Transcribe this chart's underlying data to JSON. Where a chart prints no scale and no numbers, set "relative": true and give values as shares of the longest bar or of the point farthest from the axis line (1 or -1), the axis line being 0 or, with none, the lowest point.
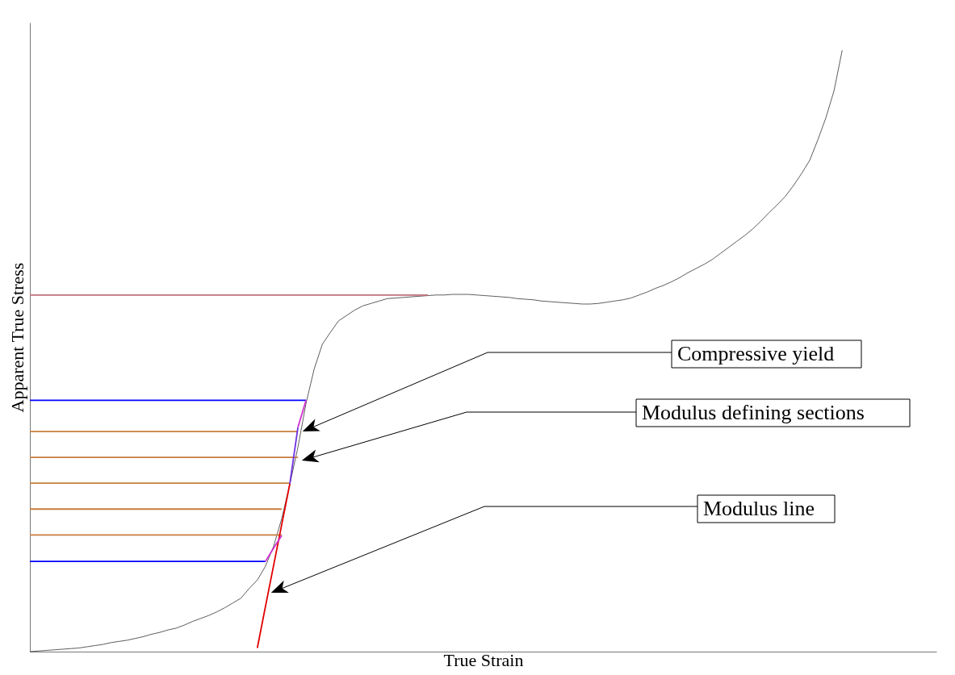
{
  "chart_data": {
    "type": "line",
    "relative": true,
    "xlabel": "True Strain",
    "ylabel": "Apparent True Stress",
    "categories": [
      null,
      null,
      null,
      null,
      null,
      null,
      null,
      null,
      null,
      null,
      null,
      null,
      null,
      null,
      null,
      null,
      null,
      null,
      null,
      null,
      null,
      null,
      null,
      null,
      null,
      null,
      null,
      null,
      null,
      null,
      null,
      null,
      null,
      null,
      null,
      null,
      null,
      null,
      null,
      null,
      null,
      null,
      null,
      null,
      null,
      null,
      null,
      null,
      null,
      null,
      null,
      null,
      null,
      null,
      null,
      null,
      null,
      null,
      null,
      null,
      null,
      null,
      null,
      null,
      null,
      null,
      null,
      null,
      null,
      null,
      null,
      null,
      null,
      null,
      null,
      null,
      null,
      null,
      null,
      null,
      null,
      null,
      null,
      null,
      null,
      null,
      null,
      null,
      null,
      null,
      null,
      null,
      null,
      null,
      null,
      null,
      null,
      null,
      null,
      null,
      null
    ],
    "series": [
      {
        "color": "#333333",
        "values": [
          0,
          0.001,
          0.002,
          0.003,
          0.004,
          0.005,
          0.006,
          0.008,
          0.01,
          0.012,
          0.015,
          0.017,
          0.019,
          0.022,
          0.025,
          0.029,
          0.032,
          0.036,
          0.039,
          0.044,
          0.05,
          0.055,
          0.06,
          0.066,
          0.073,
          0.081,
          0.089,
          0.105,
          0.119,
          0.142,
          0.175,
          0.221,
          0.278,
          0.34,
          0.413,
          0.47,
          0.511,
          0.531,
          0.55,
          0.559,
          0.568,
          0.575,
          0.579,
          0.583,
          0.587,
          0.588,
          0.589,
          0.59,
          0.591,
          0.592,
          0.593,
          0.593,
          0.594,
          0.594,
          0.594,
          0.593,
          0.592,
          0.591,
          0.59,
          0.589,
          0.587,
          0.586,
          0.585,
          0.583,
          0.582,
          0.581,
          0.58,
          0.579,
          0.578,
          0.578,
          0.579,
          0.581,
          0.583,
          0.585,
          0.588,
          0.593,
          0.598,
          0.604,
          0.609,
          0.615,
          0.622,
          0.63,
          0.637,
          0.644,
          0.652,
          0.662,
          0.672,
          0.682,
          0.692,
          0.703,
          0.716,
          0.73,
          0.743,
          0.757,
          0.775,
          0.795,
          0.817,
          0.851,
          0.888,
          0.933,
          1
        ]
      },
      {
        "color": "#c0707a",
        "values": [
          0.593,
          0.593,
          0.593,
          0.593,
          0.593,
          0.593,
          0.593,
          0.593,
          0.593,
          0.593,
          0.593,
          0.593,
          0.593,
          0.593,
          0.593,
          0.593,
          0.593,
          0.593,
          0.593,
          0.593,
          0.593,
          0.593,
          0.593,
          0.593,
          0.593,
          0.593,
          0.593,
          0.593,
          0.593,
          0.593,
          0.593,
          0.593,
          0.593,
          0.593,
          0.593,
          0.593,
          0.593,
          0.593,
          0.593,
          0.593,
          0.593,
          0.593,
          0.593,
          0.593,
          0.593,
          0.593,
          0.593,
          0.593,
          0.593,
          0.593,
          null,
          null,
          null,
          null,
          null,
          null,
          null,
          null,
          null,
          null,
          null,
          null,
          null,
          null,
          null,
          null,
          null,
          null,
          null,
          null,
          null,
          null,
          null,
          null,
          null,
          null,
          null,
          null,
          null,
          null,
          null,
          null,
          null,
          null,
          null,
          null,
          null,
          null,
          null,
          null,
          null,
          null,
          null,
          null,
          null,
          null,
          null,
          null,
          null,
          null,
          null
        ]
      },
      {
        "color": "#0000ff",
        "values": [
          0.418,
          0.418,
          0.418,
          0.418,
          0.418,
          0.418,
          0.418,
          0.418,
          0.418,
          0.418,
          0.418,
          0.418,
          0.418,
          0.418,
          0.418,
          0.418,
          0.418,
          0.418,
          0.418,
          0.418,
          0.418,
          0.418,
          0.418,
          0.418,
          0.418,
          0.418,
          0.418,
          0.418,
          0.418,
          0.418,
          0.418,
          0.418,
          0.418,
          0.418,
          0.418,
          null,
          null,
          null,
          null,
          null,
          null,
          null,
          null,
          null,
          null,
          null,
          null,
          null,
          null,
          null,
          null,
          null,
          null,
          null,
          null,
          null,
          null,
          null,
          null,
          null,
          null,
          null,
          null,
          null,
          null,
          null,
          null,
          null,
          null,
          null,
          null,
          null,
          null,
          null,
          null,
          null,
          null,
          null,
          null,
          null,
          null,
          null,
          null,
          null,
          null,
          null,
          null,
          null,
          null,
          null,
          null,
          null,
          null,
          null,
          null,
          null,
          null,
          null,
          null,
          null,
          null
        ]
      },
      {
        "color": "#c87d3c",
        "values": [
          0.366,
          0.366,
          0.366,
          0.366,
          0.366,
          0.366,
          0.366,
          0.366,
          0.366,
          0.366,
          0.366,
          0.366,
          0.366,
          0.366,
          0.366,
          0.366,
          0.366,
          0.366,
          0.366,
          0.366,
          0.366,
          0.366,
          0.366,
          0.366,
          0.366,
          0.366,
          0.366,
          0.366,
          0.366,
          0.366,
          0.366,
          0.366,
          0.366,
          0.366,
          null,
          null,
          null,
          null,
          null,
          null,
          null,
          null,
          null,
          null,
          null,
          null,
          null,
          null,
          null,
          null,
          null,
          null,
          null,
          null,
          null,
          null,
          null,
          null,
          null,
          null,
          null,
          null,
          null,
          null,
          null,
          null,
          null,
          null,
          null,
          null,
          null,
          null,
          null,
          null,
          null,
          null,
          null,
          null,
          null,
          null,
          null,
          null,
          null,
          null,
          null,
          null,
          null,
          null,
          null,
          null,
          null,
          null,
          null,
          null,
          null,
          null,
          null,
          null,
          null,
          null,
          null
        ]
      },
      {
        "color": "#c87d3c",
        "values": [
          0.323,
          0.323,
          0.323,
          0.323,
          0.323,
          0.323,
          0.323,
          0.323,
          0.323,
          0.323,
          0.323,
          0.323,
          0.323,
          0.323,
          0.323,
          0.323,
          0.323,
          0.323,
          0.323,
          0.323,
          0.323,
          0.323,
          0.323,
          0.323,
          0.323,
          0.323,
          0.323,
          0.323,
          0.323,
          0.323,
          0.323,
          0.323,
          0.323,
          0.323,
          null,
          null,
          null,
          null,
          null,
          null,
          null,
          null,
          null,
          null,
          null,
          null,
          null,
          null,
          null,
          null,
          null,
          null,
          null,
          null,
          null,
          null,
          null,
          null,
          null,
          null,
          null,
          null,
          null,
          null,
          null,
          null,
          null,
          null,
          null,
          null,
          null,
          null,
          null,
          null,
          null,
          null,
          null,
          null,
          null,
          null,
          null,
          null,
          null,
          null,
          null,
          null,
          null,
          null,
          null,
          null,
          null,
          null,
          null,
          null,
          null,
          null,
          null,
          null,
          null,
          null,
          null
        ]
      },
      {
        "color": "#c87d3c",
        "values": [
          0.28,
          0.28,
          0.28,
          0.28,
          0.28,
          0.28,
          0.28,
          0.28,
          0.28,
          0.28,
          0.28,
          0.28,
          0.28,
          0.28,
          0.28,
          0.28,
          0.28,
          0.28,
          0.28,
          0.28,
          0.28,
          0.28,
          0.28,
          0.28,
          0.28,
          0.28,
          0.28,
          0.28,
          0.28,
          0.28,
          0.28,
          0.28,
          0.28,
          null,
          null,
          null,
          null,
          null,
          null,
          null,
          null,
          null,
          null,
          null,
          null,
          null,
          null,
          null,
          null,
          null,
          null,
          null,
          null,
          null,
          null,
          null,
          null,
          null,
          null,
          null,
          null,
          null,
          null,
          null,
          null,
          null,
          null,
          null,
          null,
          null,
          null,
          null,
          null,
          null,
          null,
          null,
          null,
          null,
          null,
          null,
          null,
          null,
          null,
          null,
          null,
          null,
          null,
          null,
          null,
          null,
          null,
          null,
          null,
          null,
          null,
          null,
          null,
          null,
          null,
          null,
          null
        ]
      },
      {
        "color": "#c87d3c",
        "values": [
          0.237,
          0.237,
          0.237,
          0.237,
          0.237,
          0.237,
          0.237,
          0.237,
          0.237,
          0.237,
          0.237,
          0.237,
          0.237,
          0.237,
          0.237,
          0.237,
          0.237,
          0.237,
          0.237,
          0.237,
          0.237,
          0.237,
          0.237,
          0.237,
          0.237,
          0.237,
          0.237,
          0.237,
          0.237,
          0.237,
          0.237,
          0.237,
          null,
          null,
          null,
          null,
          null,
          null,
          null,
          null,
          null,
          null,
          null,
          null,
          null,
          null,
          null,
          null,
          null,
          null,
          null,
          null,
          null,
          null,
          null,
          null,
          null,
          null,
          null,
          null,
          null,
          null,
          null,
          null,
          null,
          null,
          null,
          null,
          null,
          null,
          null,
          null,
          null,
          null,
          null,
          null,
          null,
          null,
          null,
          null,
          null,
          null,
          null,
          null,
          null,
          null,
          null,
          null,
          null,
          null,
          null,
          null,
          null,
          null,
          null,
          null,
          null,
          null,
          null,
          null,
          null
        ]
      },
      {
        "color": "#c87d3c",
        "values": [
          0.194,
          0.194,
          0.194,
          0.194,
          0.194,
          0.194,
          0.194,
          0.194,
          0.194,
          0.194,
          0.194,
          0.194,
          0.194,
          0.194,
          0.194,
          0.194,
          0.194,
          0.194,
          0.194,
          0.194,
          0.194,
          0.194,
          0.194,
          0.194,
          0.194,
          0.194,
          0.194,
          0.194,
          0.194,
          0.194,
          0.194,
          0.194,
          null,
          null,
          null,
          null,
          null,
          null,
          null,
          null,
          null,
          null,
          null,
          null,
          null,
          null,
          null,
          null,
          null,
          null,
          null,
          null,
          null,
          null,
          null,
          null,
          null,
          null,
          null,
          null,
          null,
          null,
          null,
          null,
          null,
          null,
          null,
          null,
          null,
          null,
          null,
          null,
          null,
          null,
          null,
          null,
          null,
          null,
          null,
          null,
          null,
          null,
          null,
          null,
          null,
          null,
          null,
          null,
          null,
          null,
          null,
          null,
          null,
          null,
          null,
          null,
          null,
          null,
          null,
          null,
          null
        ]
      },
      {
        "color": "#0000ff",
        "values": [
          0.15,
          0.15,
          0.15,
          0.15,
          0.15,
          0.15,
          0.15,
          0.15,
          0.15,
          0.15,
          0.15,
          0.15,
          0.15,
          0.15,
          0.15,
          0.15,
          0.15,
          0.15,
          0.15,
          0.15,
          0.15,
          0.15,
          0.15,
          0.15,
          0.15,
          0.15,
          0.15,
          0.15,
          0.15,
          0.15,
          null,
          null,
          null,
          null,
          null,
          null,
          null,
          null,
          null,
          null,
          null,
          null,
          null,
          null,
          null,
          null,
          null,
          null,
          null,
          null,
          null,
          null,
          null,
          null,
          null,
          null,
          null,
          null,
          null,
          null,
          null,
          null,
          null,
          null,
          null,
          null,
          null,
          null,
          null,
          null,
          null,
          null,
          null,
          null,
          null,
          null,
          null,
          null,
          null,
          null,
          null,
          null,
          null,
          null,
          null,
          null,
          null,
          null,
          null,
          null,
          null,
          null,
          null,
          null,
          null,
          null,
          null,
          null,
          null,
          null,
          null
        ]
      },
      {
        "color": "#e00000",
        "values": [
          null,
          null,
          null,
          null,
          null,
          null,
          null,
          null,
          null,
          null,
          null,
          null,
          null,
          null,
          null,
          null,
          null,
          null,
          null,
          null,
          null,
          null,
          null,
          null,
          null,
          null,
          null,
          null,
          0.006,
          0.075,
          0.143,
          0.211,
          0.279,
          null,
          null,
          null,
          null,
          null,
          null,
          null,
          null,
          null,
          null,
          null,
          null,
          null,
          null,
          null,
          null,
          null,
          null,
          null,
          null,
          null,
          null,
          null,
          null,
          null,
          null,
          null,
          null,
          null,
          null,
          null,
          null,
          null,
          null,
          null,
          null,
          null,
          null,
          null,
          null,
          null,
          null,
          null,
          null,
          null,
          null,
          null,
          null,
          null,
          null,
          null,
          null,
          null,
          null,
          null,
          null,
          null,
          null,
          null,
          null,
          null,
          null,
          null,
          null,
          null,
          null,
          null,
          null
        ]
      },
      {
        "color": "#d030d0",
        "values": [
          null,
          null,
          null,
          null,
          null,
          null,
          null,
          null,
          null,
          null,
          null,
          null,
          null,
          null,
          null,
          null,
          null,
          null,
          null,
          null,
          null,
          null,
          null,
          null,
          null,
          null,
          null,
          null,
          null,
          0.15,
          0.172,
          0.193,
          null,
          null,
          null,
          null,
          null,
          null,
          null,
          null,
          null,
          null,
          null,
          null,
          null,
          null,
          null,
          null,
          null,
          null,
          null,
          null,
          null,
          null,
          null,
          null,
          null,
          null,
          null,
          null,
          null,
          null,
          null,
          null,
          null,
          null,
          null,
          null,
          null,
          null,
          null,
          null,
          null,
          null,
          null,
          null,
          null,
          null,
          null,
          null,
          null,
          null,
          null,
          null,
          null,
          null,
          null,
          null,
          null,
          null,
          null,
          null,
          null,
          null,
          null,
          null,
          null,
          null,
          null,
          null,
          null
        ]
      },
      {
        "color": "#7030e0",
        "values": [
          null,
          null,
          null,
          null,
          null,
          null,
          null,
          null,
          null,
          null,
          null,
          null,
          null,
          null,
          null,
          null,
          null,
          null,
          null,
          null,
          null,
          null,
          null,
          null,
          null,
          null,
          null,
          null,
          null,
          null,
          null,
          null,
          0.279,
          0.373,
          null,
          null,
          null,
          null,
          null,
          null,
          null,
          null,
          null,
          null,
          null,
          null,
          null,
          null,
          null,
          null,
          null,
          null,
          null,
          null,
          null,
          null,
          null,
          null,
          null,
          null,
          null,
          null,
          null,
          null,
          null,
          null,
          null,
          null,
          null,
          null,
          null,
          null,
          null,
          null,
          null,
          null,
          null,
          null,
          null,
          null,
          null,
          null,
          null,
          null,
          null,
          null,
          null,
          null,
          null,
          null,
          null,
          null,
          null,
          null,
          null,
          null,
          null,
          null,
          null,
          null,
          null
        ]
      },
      {
        "color": "#d030d0",
        "values": [
          null,
          null,
          null,
          null,
          null,
          null,
          null,
          null,
          null,
          null,
          null,
          null,
          null,
          null,
          null,
          null,
          null,
          null,
          null,
          null,
          null,
          null,
          null,
          null,
          null,
          null,
          null,
          null,
          null,
          null,
          null,
          null,
          null,
          0.373,
          0.418,
          null,
          null,
          null,
          null,
          null,
          null,
          null,
          null,
          null,
          null,
          null,
          null,
          null,
          null,
          null,
          null,
          null,
          null,
          null,
          null,
          null,
          null,
          null,
          null,
          null,
          null,
          null,
          null,
          null,
          null,
          null,
          null,
          null,
          null,
          null,
          null,
          null,
          null,
          null,
          null,
          null,
          null,
          null,
          null,
          null,
          null,
          null,
          null,
          null,
          null,
          null,
          null,
          null,
          null,
          null,
          null,
          null,
          null,
          null,
          null,
          null,
          null,
          null,
          null,
          null,
          null
        ]
      }
    ],
    "annotations": [
      "Compressive yield",
      "Modulus defining sections",
      "Modulus line"
    ]
  }
}
